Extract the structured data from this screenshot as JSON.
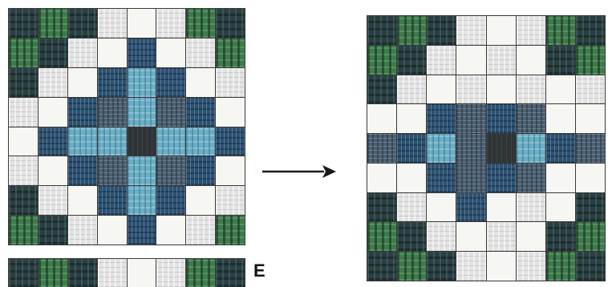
{
  "panel_label": "E",
  "tile_legend": {
    "W": "#f6f6f3",
    "L": "#e3e3e3",
    "G": "#3f7a4c",
    "D": "#2c3e44",
    "N": "#2c5272",
    "S": "#4b6072",
    "B": "#6aaec4",
    "K": "#2f3436"
  },
  "left_quilt": {
    "rows": [
      [
        "D",
        "G",
        "D",
        "L",
        "W",
        "L",
        "G",
        "D"
      ],
      [
        "G",
        "D",
        "L",
        "W",
        "N",
        "W",
        "L",
        "G"
      ],
      [
        "D",
        "L",
        "W",
        "N",
        "B",
        "N",
        "W",
        "L"
      ],
      [
        "L",
        "W",
        "N",
        "S",
        "B",
        "S",
        "N",
        "W"
      ],
      [
        "W",
        "N",
        "B",
        "B",
        "K",
        "B",
        "B",
        "N"
      ],
      [
        "L",
        "W",
        "N",
        "S",
        "B",
        "S",
        "N",
        "W"
      ],
      [
        "D",
        "L",
        "W",
        "N",
        "B",
        "N",
        "W",
        "L"
      ],
      [
        "G",
        "D",
        "L",
        "W",
        "N",
        "W",
        "L",
        "G"
      ]
    ]
  },
  "strip": {
    "rows": [
      [
        "D",
        "G",
        "D",
        "L",
        "W",
        "L",
        "G",
        "D"
      ]
    ]
  },
  "right_quilt": {
    "rows": [
      [
        "D",
        "G",
        "D",
        "L",
        "W",
        "L",
        "G",
        "D"
      ],
      [
        "G",
        "D",
        "L",
        "W",
        "L",
        "W",
        "D",
        "G"
      ],
      [
        "D",
        "L",
        "W",
        "L",
        "W",
        "L",
        "W",
        "L"
      ],
      [
        "W",
        "W",
        "N",
        "S",
        "N",
        "S",
        "W",
        "W"
      ],
      [
        "S",
        "N",
        "B",
        "S",
        "K",
        "B",
        "N",
        "S"
      ],
      [
        "W",
        "W",
        "N",
        "S",
        "N",
        "S",
        "W",
        "W"
      ],
      [
        "D",
        "L",
        "W",
        "N",
        "W",
        "L",
        "W",
        "D"
      ],
      [
        "G",
        "D",
        "L",
        "W",
        "L",
        "W",
        "D",
        "G"
      ],
      [
        "D",
        "G",
        "D",
        "L",
        "W",
        "L",
        "G",
        "D"
      ]
    ]
  }
}
